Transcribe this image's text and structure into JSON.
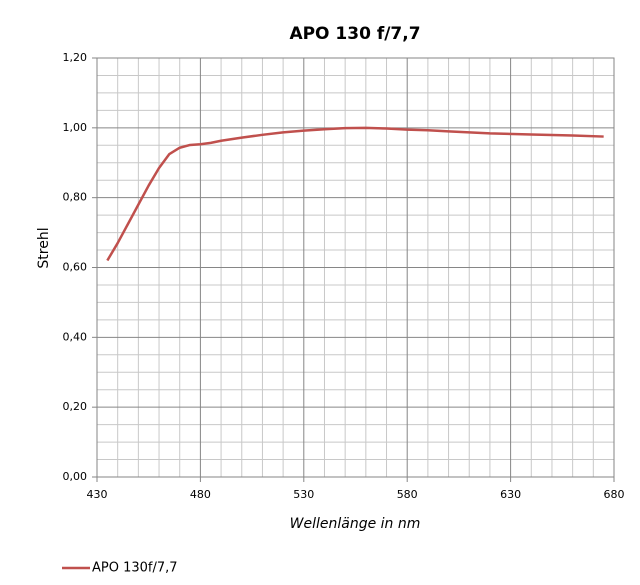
{
  "chart_data": {
    "type": "line",
    "title": "APO 130 f/7,7",
    "x_label": "Wellenlänge in nm",
    "y_label": "Strehl",
    "x": [
      435,
      440,
      445,
      450,
      455,
      460,
      465,
      470,
      475,
      480,
      485,
      490,
      500,
      510,
      520,
      530,
      540,
      550,
      560,
      570,
      580,
      590,
      600,
      620,
      640,
      660,
      675
    ],
    "series": [
      {
        "name": "APO 130f/7,7",
        "color": "#c0504d",
        "values": [
          0.62,
          0.67,
          0.725,
          0.78,
          0.835,
          0.885,
          0.925,
          0.943,
          0.951,
          0.953,
          0.957,
          0.963,
          0.972,
          0.98,
          0.987,
          0.992,
          0.996,
          0.999,
          1.0,
          0.998,
          0.995,
          0.993,
          0.99,
          0.984,
          0.981,
          0.978,
          0.975
        ]
      }
    ],
    "xlim": [
      430,
      680
    ],
    "xticks": [
      430,
      480,
      530,
      580,
      630,
      680
    ],
    "ylim": [
      0,
      1.2
    ],
    "yticks": [
      {
        "value": 0,
        "label": "0,00"
      },
      {
        "value": 0.2,
        "label": "0,20"
      },
      {
        "value": 0.4,
        "label": "0,40"
      },
      {
        "value": 0.6,
        "label": "0,60"
      },
      {
        "value": 0.8,
        "label": "0,80"
      },
      {
        "value": 1.0,
        "label": "1,00"
      },
      {
        "value": 1.2,
        "label": "1,20"
      }
    ],
    "grid": true,
    "legend": "bottom-left"
  }
}
